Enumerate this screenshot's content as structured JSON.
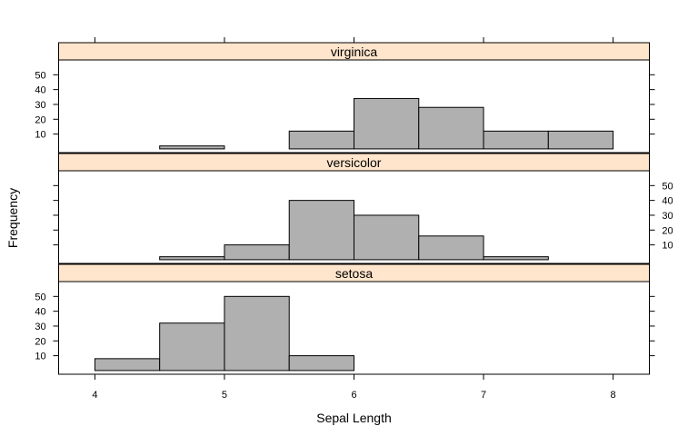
{
  "chart_data": {
    "type": "bar",
    "layout": "lattice-histogram-stacked-panels",
    "xlabel": "Sepal Length",
    "ylabel": "Frequency",
    "xlim": [
      3.72,
      8.28
    ],
    "ylim": [
      -2.5,
      60
    ],
    "x_ticks": [
      4,
      5,
      6,
      7,
      8
    ],
    "y_ticks": [
      10,
      20,
      30,
      40,
      50
    ],
    "bin_edges": [
      4.0,
      4.5,
      5.0,
      5.5,
      6.0,
      6.5,
      7.0,
      7.5,
      8.0
    ],
    "panels": [
      {
        "name": "virginica",
        "values": [
          0,
          2,
          0,
          12,
          34,
          28,
          12,
          12
        ],
        "y_tick_side": "left"
      },
      {
        "name": "versicolor",
        "values": [
          0,
          2,
          10,
          40,
          30,
          16,
          2,
          0
        ],
        "y_tick_side": "right"
      },
      {
        "name": "setosa",
        "values": [
          8,
          32,
          50,
          10,
          0,
          0,
          0,
          0
        ],
        "y_tick_side": "left"
      }
    ],
    "colors": {
      "bar_fill": "#b0b0b0",
      "strip_fill": "#ffe5cc",
      "outline": "#000000"
    }
  }
}
